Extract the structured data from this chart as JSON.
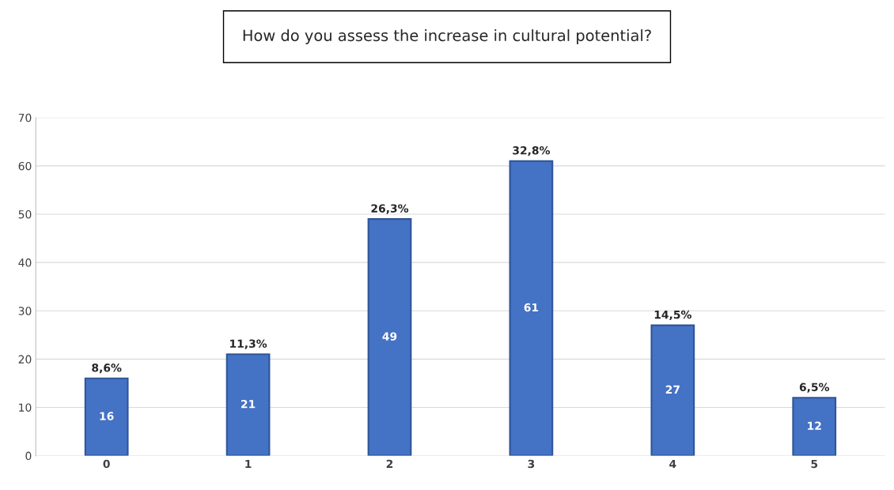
{
  "chart_data": {
    "type": "bar",
    "title": "How do you assess the increase in cultural potential?",
    "categories": [
      "0",
      "1",
      "2",
      "3",
      "4",
      "5"
    ],
    "values": [
      16,
      21,
      49,
      61,
      27,
      12
    ],
    "color": "#4472c4",
    "ylim": [
      0,
      70
    ],
    "yticks": [
      0,
      10,
      20,
      30,
      40,
      50,
      60,
      70
    ],
    "grid": "y",
    "data_labels": true,
    "annotations": [
      {
        "text": "8,6%",
        "x": "0",
        "y": 16
      },
      {
        "text": "11,3%",
        "x": "1",
        "y": 21
      },
      {
        "text": "26,3%",
        "x": "2",
        "y": 49
      },
      {
        "text": "32,8%",
        "x": "3",
        "y": 61
      },
      {
        "text": "14,5%",
        "x": "4",
        "y": 27
      },
      {
        "text": "6,5%",
        "x": "5",
        "y": 12
      }
    ]
  }
}
